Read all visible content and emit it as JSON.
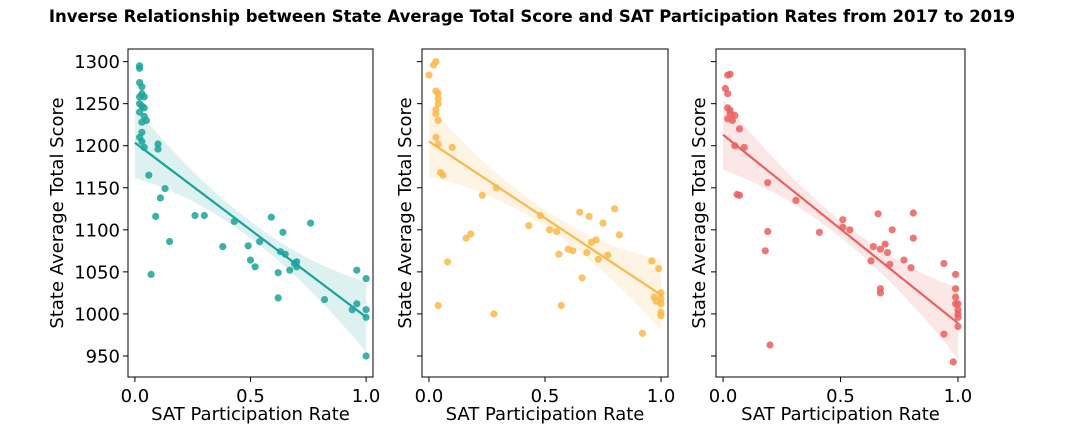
{
  "chart_data": {
    "title": "Inverse Relationship between State Average Total Score and SAT Participation Rates from 2017 to 2019",
    "type": "scatter",
    "xlim": [
      -0.03,
      1.03
    ],
    "ylim": [
      925,
      1315
    ],
    "xticks": [
      0.0,
      0.5,
      1.0
    ],
    "xtick_labels": [
      "0.0",
      "0.5",
      "1.0"
    ],
    "yticks": [
      950,
      1000,
      1050,
      1100,
      1150,
      1200,
      1250,
      1300
    ],
    "ytick_labels": [
      "950",
      "1000",
      "1050",
      "1100",
      "1150",
      "1200",
      "1250",
      "1300"
    ],
    "xlabel": "SAT Participation Rate",
    "ylabel": "State Average Total Score",
    "grid": false,
    "panels": [
      {
        "color": "#1aa39a",
        "points": [
          [
            0.02,
            1295
          ],
          [
            0.02,
            1292
          ],
          [
            0.02,
            1275
          ],
          [
            0.03,
            1270
          ],
          [
            0.02,
            1258
          ],
          [
            0.03,
            1262
          ],
          [
            0.04,
            1258
          ],
          [
            0.02,
            1250
          ],
          [
            0.03,
            1247
          ],
          [
            0.04,
            1245
          ],
          [
            0.02,
            1240
          ],
          [
            0.04,
            1235
          ],
          [
            0.05,
            1230
          ],
          [
            0.03,
            1228
          ],
          [
            0.03,
            1216
          ],
          [
            0.02,
            1210
          ],
          [
            0.03,
            1205
          ],
          [
            0.04,
            1198
          ],
          [
            0.1,
            1202
          ],
          [
            0.1,
            1196
          ],
          [
            0.06,
            1165
          ],
          [
            0.13,
            1149
          ],
          [
            0.11,
            1138
          ],
          [
            0.09,
            1116
          ],
          [
            0.15,
            1086
          ],
          [
            0.07,
            1047
          ],
          [
            0.26,
            1117
          ],
          [
            0.3,
            1117
          ],
          [
            0.43,
            1110
          ],
          [
            0.38,
            1080
          ],
          [
            0.49,
            1081
          ],
          [
            0.5,
            1064
          ],
          [
            0.54,
            1086
          ],
          [
            0.52,
            1056
          ],
          [
            0.59,
            1115
          ],
          [
            0.63,
            1074
          ],
          [
            0.62,
            1049
          ],
          [
            0.62,
            1019
          ],
          [
            0.65,
            1071
          ],
          [
            0.64,
            1097
          ],
          [
            0.67,
            1052
          ],
          [
            0.69,
            1060
          ],
          [
            0.7,
            1056
          ],
          [
            0.7,
            1062
          ],
          [
            0.76,
            1108
          ],
          [
            0.82,
            1017
          ],
          [
            0.96,
            1052
          ],
          [
            0.96,
            1012
          ],
          [
            0.94,
            1005
          ],
          [
            1.0,
            1042
          ],
          [
            1.0,
            1005
          ],
          [
            1.0,
            996
          ],
          [
            1.0,
            950
          ]
        ],
        "fit": [
          1203.6,
          -207.2
        ]
      },
      {
        "color": "#fbb748",
        "points": [
          [
            0.03,
            1300
          ],
          [
            0.02,
            1296
          ],
          [
            0.0,
            1284
          ],
          [
            0.03,
            1265
          ],
          [
            0.04,
            1262
          ],
          [
            0.04,
            1256
          ],
          [
            0.04,
            1250
          ],
          [
            0.03,
            1243
          ],
          [
            0.03,
            1238
          ],
          [
            0.04,
            1230
          ],
          [
            0.03,
            1210
          ],
          [
            0.04,
            1202
          ],
          [
            0.1,
            1198
          ],
          [
            0.05,
            1168
          ],
          [
            0.06,
            1165
          ],
          [
            0.23,
            1141
          ],
          [
            0.29,
            1150
          ],
          [
            0.08,
            1062
          ],
          [
            0.18,
            1095
          ],
          [
            0.16,
            1090
          ],
          [
            0.04,
            1010
          ],
          [
            0.28,
            1000
          ],
          [
            0.43,
            1105
          ],
          [
            0.48,
            1117
          ],
          [
            0.52,
            1100
          ],
          [
            0.55,
            1098
          ],
          [
            0.56,
            1071
          ],
          [
            0.57,
            1010
          ],
          [
            0.6,
            1077
          ],
          [
            0.62,
            1075
          ],
          [
            0.65,
            1121
          ],
          [
            0.66,
            1043
          ],
          [
            0.68,
            1073
          ],
          [
            0.69,
            1116
          ],
          [
            0.7,
            1085
          ],
          [
            0.72,
            1088
          ],
          [
            0.73,
            1065
          ],
          [
            0.75,
            1108
          ],
          [
            0.77,
            1070
          ],
          [
            0.8,
            1125
          ],
          [
            0.82,
            1094
          ],
          [
            0.92,
            977
          ],
          [
            0.96,
            1063
          ],
          [
            0.97,
            1020
          ],
          [
            0.98,
            1015
          ],
          [
            0.99,
            1054
          ],
          [
            1.0,
            1025
          ],
          [
            1.0,
            1018
          ],
          [
            1.0,
            1012
          ],
          [
            1.0,
            1002
          ],
          [
            1.0,
            998
          ]
        ],
        "fit": [
          1205.1,
          -182.5
        ]
      },
      {
        "color": "#eb5f5d",
        "points": [
          [
            0.03,
            1285
          ],
          [
            0.02,
            1284
          ],
          [
            0.01,
            1268
          ],
          [
            0.02,
            1262
          ],
          [
            0.02,
            1245
          ],
          [
            0.03,
            1242
          ],
          [
            0.03,
            1238
          ],
          [
            0.05,
            1236
          ],
          [
            0.02,
            1232
          ],
          [
            0.04,
            1230
          ],
          [
            0.07,
            1220
          ],
          [
            0.05,
            1200
          ],
          [
            0.09,
            1198
          ],
          [
            0.06,
            1142
          ],
          [
            0.07,
            1141
          ],
          [
            0.19,
            1156
          ],
          [
            0.31,
            1135
          ],
          [
            0.19,
            1098
          ],
          [
            0.18,
            1075
          ],
          [
            0.2,
            963
          ],
          [
            0.41,
            1097
          ],
          [
            0.51,
            1112
          ],
          [
            0.51,
            1103
          ],
          [
            0.54,
            1100
          ],
          [
            0.63,
            1063
          ],
          [
            0.64,
            1080
          ],
          [
            0.66,
            1119
          ],
          [
            0.67,
            1077
          ],
          [
            0.67,
            1030
          ],
          [
            0.67,
            1025
          ],
          [
            0.69,
            1083
          ],
          [
            0.7,
            1073
          ],
          [
            0.71,
            1059
          ],
          [
            0.72,
            1100
          ],
          [
            0.77,
            1064
          ],
          [
            0.8,
            1055
          ],
          [
            0.81,
            1120
          ],
          [
            0.81,
            1090
          ],
          [
            0.94,
            1060
          ],
          [
            0.94,
            976
          ],
          [
            0.98,
            943
          ],
          [
            0.99,
            1047
          ],
          [
            0.99,
            1030
          ],
          [
            0.99,
            1020
          ],
          [
            1.0,
            1012
          ],
          [
            1.0,
            1005
          ],
          [
            1.0,
            1000
          ],
          [
            1.0,
            996
          ],
          [
            1.0,
            985
          ],
          [
            0.99,
            1012
          ]
        ],
        "fit": [
          1213.0,
          -224.0
        ]
      }
    ]
  }
}
